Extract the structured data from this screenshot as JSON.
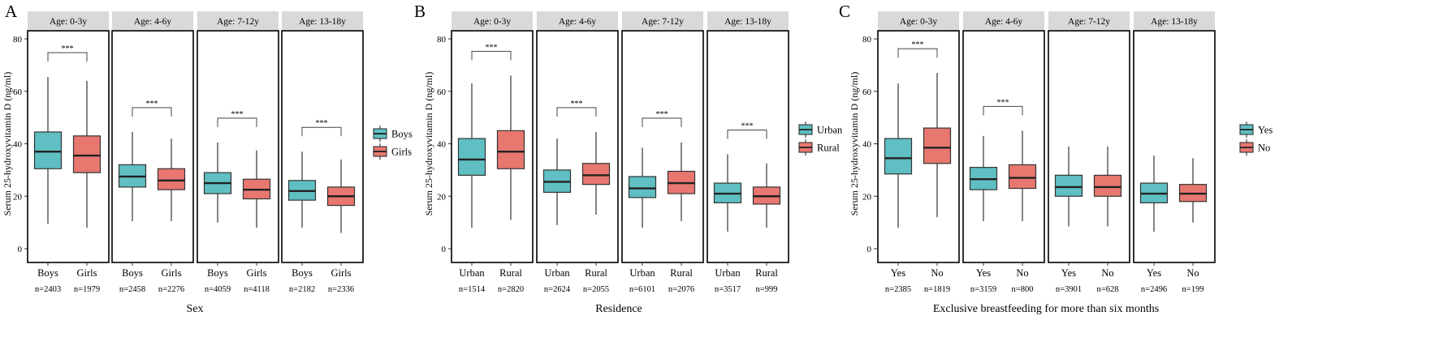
{
  "colors": {
    "series_a": "#5fbfc2",
    "series_b": "#e8776f",
    "strip": "#d9d9d9",
    "line": "#000000"
  },
  "chart_data": [
    {
      "type": "boxplot",
      "panel_label": "A",
      "xlabel": "Sex",
      "ylabel": "Serum 25-hydroxyvitamin D (ng/ml)",
      "ylim": [
        -3,
        84
      ],
      "yticks": [
        0,
        20,
        40,
        60,
        80
      ],
      "legend": [
        "Boys",
        "Girls"
      ],
      "facets": [
        {
          "strip": "Age: 0-3y",
          "sig": "***",
          "groups": [
            {
              "name": "Boys",
              "n": "n=2403",
              "whisker_low": 9.5,
              "q1": 30.5,
              "median": 37,
              "q3": 44.5,
              "whisker_high": 65.5
            },
            {
              "name": "Girls",
              "n": "n=1979",
              "whisker_low": 8,
              "q1": 29,
              "median": 35.5,
              "q3": 43,
              "whisker_high": 64
            }
          ]
        },
        {
          "strip": "Age: 4-6y",
          "sig": "***",
          "groups": [
            {
              "name": "Boys",
              "n": "n=2458",
              "whisker_low": 10.5,
              "q1": 23.5,
              "median": 27.5,
              "q3": 32,
              "whisker_high": 44.5
            },
            {
              "name": "Girls",
              "n": "n=2276",
              "whisker_low": 10.5,
              "q1": 22.5,
              "median": 26,
              "q3": 30.5,
              "whisker_high": 42
            }
          ]
        },
        {
          "strip": "Age: 7-12y",
          "sig": "***",
          "groups": [
            {
              "name": "Boys",
              "n": "n=4059",
              "whisker_low": 10,
              "q1": 21,
              "median": 25,
              "q3": 29,
              "whisker_high": 40.5
            },
            {
              "name": "Girls",
              "n": "n=4118",
              "whisker_low": 8,
              "q1": 19,
              "median": 22.5,
              "q3": 26.5,
              "whisker_high": 37.5
            }
          ]
        },
        {
          "strip": "Age: 13-18y",
          "sig": "***",
          "groups": [
            {
              "name": "Boys",
              "n": "n=2182",
              "whisker_low": 8,
              "q1": 18.5,
              "median": 22,
              "q3": 26,
              "whisker_high": 37
            },
            {
              "name": "Girls",
              "n": "n=2336",
              "whisker_low": 6,
              "q1": 16.5,
              "median": 20,
              "q3": 23.5,
              "whisker_high": 34
            }
          ]
        }
      ]
    },
    {
      "type": "boxplot",
      "panel_label": "B",
      "xlabel": "Residence",
      "ylabel": "Serum 25-hydroxyvitamin D (ng/ml)",
      "ylim": [
        -3,
        84
      ],
      "yticks": [
        0,
        20,
        40,
        60,
        80
      ],
      "legend": [
        "Urban",
        "Rural"
      ],
      "facets": [
        {
          "strip": "Age: 0-3y",
          "sig": "***",
          "groups": [
            {
              "name": "Urban",
              "n": "n=1514",
              "whisker_low": 8,
              "q1": 28,
              "median": 34,
              "q3": 42,
              "whisker_high": 63
            },
            {
              "name": "Rural",
              "n": "n=2820",
              "whisker_low": 11,
              "q1": 30.5,
              "median": 37,
              "q3": 45,
              "whisker_high": 66
            }
          ]
        },
        {
          "strip": "Age: 4-6y",
          "sig": "***",
          "groups": [
            {
              "name": "Urban",
              "n": "n=2624",
              "whisker_low": 9,
              "q1": 21.5,
              "median": 25.5,
              "q3": 30,
              "whisker_high": 42
            },
            {
              "name": "Rural",
              "n": "n=2055",
              "whisker_low": 13,
              "q1": 24.5,
              "median": 28,
              "q3": 32.5,
              "whisker_high": 44.5
            }
          ]
        },
        {
          "strip": "Age: 7-12y",
          "sig": "***",
          "groups": [
            {
              "name": "Urban",
              "n": "n=6101",
              "whisker_low": 8,
              "q1": 19.5,
              "median": 23,
              "q3": 27.5,
              "whisker_high": 38.5
            },
            {
              "name": "Rural",
              "n": "n=2076",
              "whisker_low": 10.5,
              "q1": 21,
              "median": 25,
              "q3": 29.5,
              "whisker_high": 40.5
            }
          ]
        },
        {
          "strip": "Age: 13-18y",
          "sig": "***",
          "groups": [
            {
              "name": "Urban",
              "n": "n=3517",
              "whisker_low": 6.5,
              "q1": 17.5,
              "median": 21,
              "q3": 25,
              "whisker_high": 36
            },
            {
              "name": "Rural",
              "n": "n=999",
              "whisker_low": 8,
              "q1": 17,
              "median": 20,
              "q3": 23.5,
              "whisker_high": 32.5
            }
          ]
        }
      ]
    },
    {
      "type": "boxplot",
      "panel_label": "C",
      "xlabel": "Exclusive breastfeeding for more than six months",
      "ylabel": "Serum 25-hydroxyvitamin D (ng/ml)",
      "ylim": [
        -3,
        84
      ],
      "yticks": [
        0,
        20,
        40,
        60,
        80
      ],
      "legend": [
        "Yes",
        "No"
      ],
      "facets": [
        {
          "strip": "Age: 0-3y",
          "sig": "***",
          "groups": [
            {
              "name": "Yes",
              "n": "n=2385",
              "whisker_low": 8,
              "q1": 28.5,
              "median": 34.5,
              "q3": 42,
              "whisker_high": 63
            },
            {
              "name": "No",
              "n": "n=1819",
              "whisker_low": 12,
              "q1": 32.5,
              "median": 38.5,
              "q3": 46,
              "whisker_high": 67
            }
          ]
        },
        {
          "strip": "Age: 4-6y",
          "sig": "***",
          "groups": [
            {
              "name": "Yes",
              "n": "n=3159",
              "whisker_low": 10.5,
              "q1": 22.5,
              "median": 26.5,
              "q3": 31,
              "whisker_high": 43
            },
            {
              "name": "No",
              "n": "n=800",
              "whisker_low": 10.5,
              "q1": 23,
              "median": 27,
              "q3": 32,
              "whisker_high": 45
            }
          ]
        },
        {
          "strip": "Age: 7-12y",
          "sig": "",
          "groups": [
            {
              "name": "Yes",
              "n": "n=3901",
              "whisker_low": 8.5,
              "q1": 20,
              "median": 23.5,
              "q3": 28,
              "whisker_high": 39
            },
            {
              "name": "No",
              "n": "n=628",
              "whisker_low": 8.5,
              "q1": 20,
              "median": 23.5,
              "q3": 28,
              "whisker_high": 39
            }
          ]
        },
        {
          "strip": "Age: 13-18y",
          "sig": "",
          "groups": [
            {
              "name": "Yes",
              "n": "n=2496",
              "whisker_low": 6.5,
              "q1": 17.5,
              "median": 21,
              "q3": 25,
              "whisker_high": 35.5
            },
            {
              "name": "No",
              "n": "n=199",
              "whisker_low": 10,
              "q1": 18,
              "median": 21,
              "q3": 24.5,
              "whisker_high": 34.5
            }
          ]
        }
      ]
    }
  ]
}
